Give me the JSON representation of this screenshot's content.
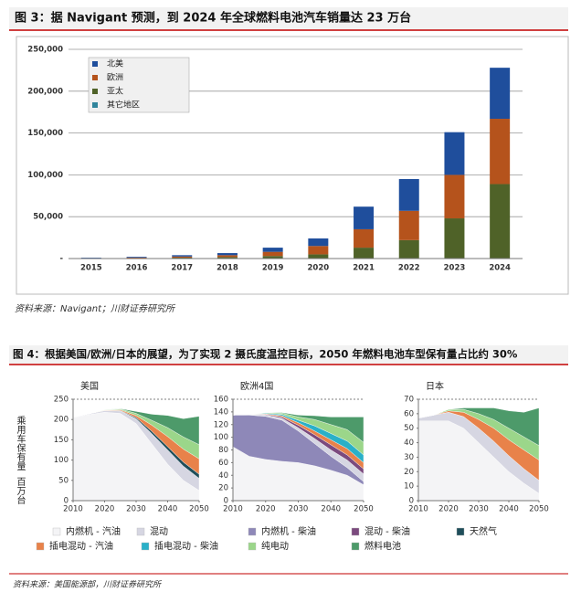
{
  "figure3_title": "图 3：据 Navigant 预测，到 2024 年全球燃料电池汽车销量达 23 万台",
  "source3": "资料来源：Navigant；川财证券研究所",
  "figure4_title": "图 4：根据美国/欧洲/日本的展望，为了实现 2 摄氏度温控目标，2050 年燃料电池车型保有量占比约 30%",
  "y_label_top": "乘用车保有量",
  "y_label_bottom": "百万台",
  "source4": "资料来源：美国能源部，川财证券研究所",
  "chart_data": [
    {
      "type": "bar",
      "stacked": true,
      "categories": [
        "2015",
        "2016",
        "2017",
        "2018",
        "2019",
        "2020",
        "2021",
        "2022",
        "2023",
        "2024"
      ],
      "series": [
        {
          "name": "北美",
          "color": "#1f4e9c",
          "values": [
            500,
            900,
            1600,
            2500,
            5000,
            9000,
            27000,
            38000,
            51000,
            61000
          ]
        },
        {
          "name": "欧洲",
          "color": "#b5531c",
          "values": [
            300,
            600,
            1300,
            2200,
            5000,
            10000,
            22000,
            35000,
            52000,
            78000
          ]
        },
        {
          "name": "亚太",
          "color": "#4f6228",
          "values": [
            200,
            500,
            1100,
            1800,
            3000,
            5000,
            13000,
            22000,
            48000,
            89000
          ]
        },
        {
          "name": "其它地区",
          "color": "#31859c",
          "values": [
            0,
            0,
            0,
            0,
            0,
            0,
            0,
            0,
            0,
            0
          ]
        }
      ],
      "ylim": [
        0,
        250000
      ],
      "yticks": [
        {
          "value": 0,
          "label": "-"
        },
        {
          "value": 50000,
          "label": "50,000"
        },
        {
          "value": 100000,
          "label": "100,000"
        },
        {
          "value": 150000,
          "label": "150,000"
        },
        {
          "value": 200000,
          "label": "200,000"
        },
        {
          "value": 250000,
          "label": "250,000"
        }
      ],
      "grid": true,
      "legend": "upper left"
    },
    {
      "type": "area",
      "stacked": true,
      "title": "美国",
      "x": [
        2010,
        2015,
        2020,
        2025,
        2030,
        2035,
        2040,
        2045,
        2050
      ],
      "series": [
        {
          "name": "内燃机 - 汽油",
          "color": "#f4f4f6",
          "values": [
            205,
            212,
            218,
            215,
            190,
            140,
            90,
            50,
            25
          ]
        },
        {
          "name": "混动",
          "color": "#d6d6e2",
          "values": [
            1,
            2,
            4,
            6,
            12,
            25,
            35,
            35,
            30
          ]
        },
        {
          "name": "天然气",
          "color": "#1f4e5a",
          "values": [
            0,
            0,
            0,
            1,
            3,
            6,
            8,
            10,
            10
          ]
        },
        {
          "name": "插电混动 - 汽油",
          "color": "#e8824a",
          "values": [
            0,
            0,
            1,
            2,
            5,
            15,
            25,
            32,
            38
          ]
        },
        {
          "name": "纯电动",
          "color": "#9bd68a",
          "values": [
            0,
            0,
            1,
            2,
            5,
            12,
            22,
            30,
            35
          ]
        },
        {
          "name": "燃料电池",
          "color": "#4d9a6a",
          "values": [
            0,
            0,
            0,
            1,
            5,
            15,
            30,
            45,
            70
          ]
        }
      ],
      "xlim": [
        2010,
        2050
      ],
      "xticks": [
        2010,
        2020,
        2030,
        2040,
        2050
      ],
      "ylim": [
        0,
        250
      ],
      "yticks": [
        0,
        50,
        100,
        150,
        200,
        250
      ]
    },
    {
      "type": "area",
      "stacked": true,
      "title": "欧洲4国",
      "x": [
        2010,
        2015,
        2020,
        2025,
        2030,
        2035,
        2040,
        2045,
        2050
      ],
      "series": [
        {
          "name": "内燃机 - 汽油",
          "color": "#f4f4f6",
          "values": [
            85,
            70,
            65,
            62,
            60,
            55,
            48,
            40,
            25
          ]
        },
        {
          "name": "内燃机 - 柴油",
          "color": "#8e88b8",
          "values": [
            50,
            65,
            68,
            65,
            50,
            35,
            22,
            12,
            5
          ]
        },
        {
          "name": "混动",
          "color": "#d6d6e2",
          "values": [
            0,
            1,
            2,
            3,
            5,
            8,
            10,
            12,
            12
          ]
        },
        {
          "name": "混动 - 柴油",
          "color": "#7b4a7e",
          "values": [
            0,
            0,
            1,
            2,
            4,
            6,
            8,
            8,
            8
          ]
        },
        {
          "name": "插电混动 - 汽油",
          "color": "#e8824a",
          "values": [
            0,
            0,
            1,
            2,
            4,
            6,
            8,
            10,
            10
          ]
        },
        {
          "name": "插电混动 - 柴油",
          "color": "#2ab0c8",
          "values": [
            0,
            0,
            1,
            2,
            4,
            8,
            10,
            12,
            12
          ]
        },
        {
          "name": "纯电动",
          "color": "#9bd68a",
          "values": [
            0,
            0,
            1,
            2,
            5,
            10,
            14,
            18,
            20
          ]
        },
        {
          "name": "燃料电池",
          "color": "#4d9a6a",
          "values": [
            0,
            0,
            0,
            1,
            3,
            6,
            12,
            20,
            40
          ]
        }
      ],
      "xlim": [
        2010,
        2050
      ],
      "xticks": [
        2010,
        2020,
        2030,
        2040,
        2050
      ],
      "ylim": [
        0,
        160
      ],
      "yticks": [
        0,
        20,
        40,
        60,
        80,
        100,
        120,
        140,
        160
      ]
    },
    {
      "type": "area",
      "stacked": true,
      "title": "日本",
      "x": [
        2010,
        2015,
        2020,
        2025,
        2030,
        2035,
        2040,
        2045,
        2050
      ],
      "series": [
        {
          "name": "内燃机 - 汽油",
          "color": "#f4f4f6",
          "values": [
            55,
            55,
            55,
            50,
            40,
            30,
            20,
            12,
            5
          ]
        },
        {
          "name": "混动",
          "color": "#d6d6e2",
          "values": [
            2,
            4,
            6,
            8,
            10,
            11,
            11,
            10,
            9
          ]
        },
        {
          "name": "插电混动 - 汽油",
          "color": "#e8824a",
          "values": [
            0,
            0,
            1,
            3,
            6,
            9,
            11,
            13,
            14
          ]
        },
        {
          "name": "纯电动",
          "color": "#9bd68a",
          "values": [
            0,
            0,
            1,
            2,
            4,
            6,
            8,
            9,
            10
          ]
        },
        {
          "name": "燃料电池",
          "color": "#4d9a6a",
          "values": [
            0,
            0,
            0,
            1,
            4,
            8,
            12,
            17,
            26
          ]
        }
      ],
      "xlim": [
        2010,
        2050
      ],
      "xticks": [
        2010,
        2020,
        2030,
        2040,
        2050
      ],
      "ylim": [
        0,
        70
      ],
      "yticks": [
        0,
        10,
        20,
        30,
        40,
        50,
        60,
        70
      ]
    }
  ]
}
